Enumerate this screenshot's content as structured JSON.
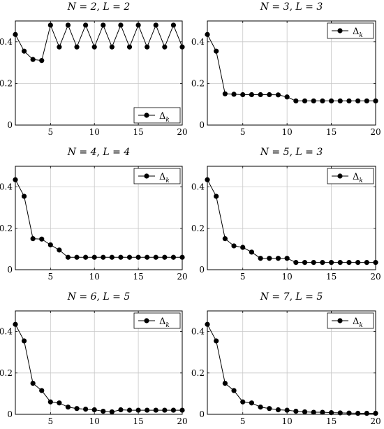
{
  "chart_data": [
    {
      "type": "line",
      "title": "N = 2, L = 2",
      "legend": "Δ_k",
      "legend_position": "bottom-right",
      "grid": true,
      "xlim": [
        1,
        20
      ],
      "ylim": [
        0,
        0.5
      ],
      "xticks": [
        5,
        10,
        15,
        20
      ],
      "yticks": [
        0,
        0.2,
        0.4
      ],
      "series": [
        {
          "name": "Δ_k",
          "x": [
            1,
            2,
            3,
            4,
            5,
            6,
            7,
            8,
            9,
            10,
            11,
            12,
            13,
            14,
            15,
            16,
            17,
            18,
            19,
            20
          ],
          "y": [
            0.435,
            0.355,
            0.315,
            0.31,
            0.48,
            0.375,
            0.48,
            0.375,
            0.48,
            0.375,
            0.48,
            0.375,
            0.48,
            0.375,
            0.48,
            0.375,
            0.48,
            0.375,
            0.48,
            0.375
          ]
        }
      ]
    },
    {
      "type": "line",
      "title": "N = 3, L = 3",
      "legend": "Δ_k",
      "legend_position": "top-right",
      "grid": true,
      "xlim": [
        1,
        20
      ],
      "ylim": [
        0,
        0.5
      ],
      "xticks": [
        5,
        10,
        15,
        20
      ],
      "yticks": [
        0,
        0.2,
        0.4
      ],
      "series": [
        {
          "name": "Δ_k",
          "x": [
            1,
            2,
            3,
            4,
            5,
            6,
            7,
            8,
            9,
            10,
            11,
            12,
            13,
            14,
            15,
            16,
            17,
            18,
            19,
            20
          ],
          "y": [
            0.435,
            0.355,
            0.15,
            0.148,
            0.146,
            0.146,
            0.146,
            0.146,
            0.145,
            0.135,
            0.116,
            0.116,
            0.116,
            0.116,
            0.116,
            0.116,
            0.116,
            0.116,
            0.116,
            0.116
          ]
        }
      ]
    },
    {
      "type": "line",
      "title": "N = 4, L = 4",
      "legend": "Δ_k",
      "legend_position": "top-right",
      "grid": true,
      "xlim": [
        1,
        20
      ],
      "ylim": [
        0,
        0.5
      ],
      "xticks": [
        5,
        10,
        15,
        20
      ],
      "yticks": [
        0,
        0.2,
        0.4
      ],
      "series": [
        {
          "name": "Δ_k",
          "x": [
            1,
            2,
            3,
            4,
            5,
            6,
            7,
            8,
            9,
            10,
            11,
            12,
            13,
            14,
            15,
            16,
            17,
            18,
            19,
            20
          ],
          "y": [
            0.435,
            0.355,
            0.15,
            0.148,
            0.12,
            0.095,
            0.06,
            0.06,
            0.06,
            0.06,
            0.06,
            0.06,
            0.06,
            0.06,
            0.06,
            0.06,
            0.06,
            0.06,
            0.06,
            0.06
          ]
        }
      ]
    },
    {
      "type": "line",
      "title": "N = 5, L = 3",
      "legend": "Δ_k",
      "legend_position": "top-right",
      "grid": true,
      "xlim": [
        1,
        20
      ],
      "ylim": [
        0,
        0.5
      ],
      "xticks": [
        5,
        10,
        15,
        20
      ],
      "yticks": [
        0,
        0.2,
        0.4
      ],
      "series": [
        {
          "name": "Δ_k",
          "x": [
            1,
            2,
            3,
            4,
            5,
            6,
            7,
            8,
            9,
            10,
            11,
            12,
            13,
            14,
            15,
            16,
            17,
            18,
            19,
            20
          ],
          "y": [
            0.435,
            0.355,
            0.15,
            0.115,
            0.108,
            0.085,
            0.055,
            0.055,
            0.055,
            0.055,
            0.035,
            0.035,
            0.035,
            0.035,
            0.035,
            0.035,
            0.035,
            0.035,
            0.035,
            0.035
          ]
        }
      ]
    },
    {
      "type": "line",
      "title": "N = 6, L = 5",
      "legend": "Δ_k",
      "legend_position": "top-right",
      "grid": true,
      "xlim": [
        1,
        20
      ],
      "ylim": [
        0,
        0.5
      ],
      "xticks": [
        5,
        10,
        15,
        20
      ],
      "yticks": [
        0,
        0.2,
        0.4
      ],
      "series": [
        {
          "name": "Δ_k",
          "x": [
            1,
            2,
            3,
            4,
            5,
            6,
            7,
            8,
            9,
            10,
            11,
            12,
            13,
            14,
            15,
            16,
            17,
            18,
            19,
            20
          ],
          "y": [
            0.435,
            0.355,
            0.15,
            0.115,
            0.06,
            0.055,
            0.035,
            0.028,
            0.025,
            0.022,
            0.015,
            0.012,
            0.022,
            0.02,
            0.02,
            0.02,
            0.02,
            0.02,
            0.02,
            0.02
          ]
        }
      ]
    },
    {
      "type": "line",
      "title": "N = 7, L = 5",
      "legend": "Δ_k",
      "legend_position": "top-right",
      "grid": true,
      "xlim": [
        1,
        20
      ],
      "ylim": [
        0,
        0.5
      ],
      "xticks": [
        5,
        10,
        15,
        20
      ],
      "yticks": [
        0,
        0.2,
        0.4
      ],
      "series": [
        {
          "name": "Δ_k",
          "x": [
            1,
            2,
            3,
            4,
            5,
            6,
            7,
            8,
            9,
            10,
            11,
            12,
            13,
            14,
            15,
            16,
            17,
            18,
            19,
            20
          ],
          "y": [
            0.435,
            0.355,
            0.15,
            0.115,
            0.06,
            0.055,
            0.035,
            0.028,
            0.022,
            0.02,
            0.015,
            0.012,
            0.01,
            0.01,
            0.008,
            0.007,
            0.006,
            0.005,
            0.005,
            0.005
          ]
        }
      ]
    }
  ]
}
